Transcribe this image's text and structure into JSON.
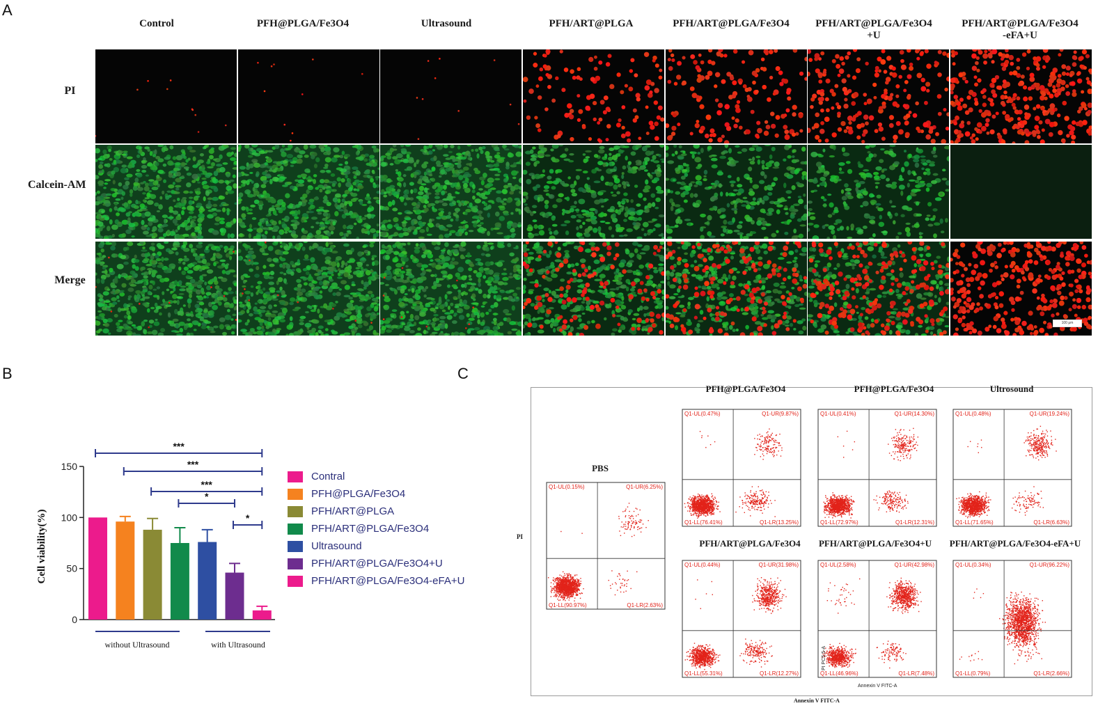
{
  "panels": {
    "a": "A",
    "b": "B",
    "c": "C"
  },
  "microscopy": {
    "columns": [
      "Control",
      "PFH@PLGA/Fe3O4",
      "Ultrasound",
      "PFH/ART@PLGA",
      "PFH/ART@PLGA/Fe3O4",
      "PFH/ART@PLGA/Fe3O4\n+U",
      "PFH/ART@PLGA/Fe3O4\n-eFA+U"
    ],
    "rows": [
      "PI",
      "Calcein-AM",
      "Merge"
    ],
    "scale_bar": "100 μm",
    "red_density": [
      0.02,
      0.02,
      0.02,
      0.35,
      0.45,
      0.6,
      1.0
    ],
    "green_density": [
      1.0,
      1.0,
      1.0,
      0.7,
      0.6,
      0.5,
      0.0
    ]
  },
  "chart_data": {
    "type": "bar",
    "ylabel": "Cell viability(%)",
    "ylim": [
      0,
      150
    ],
    "yticks": [
      "0",
      "50",
      "100",
      "150"
    ],
    "categories": [
      "Contral",
      "PFH@PLGA/Fe3O4",
      "PFH/ART@PLGA",
      "PFH/ART@PLGA/Fe3O4",
      "Ultrasound",
      "PFH/ART@PLGA/Fe3O4+U",
      "PFH/ART@PLGA/Fe3O4-eFA+U"
    ],
    "values": [
      100,
      96,
      88,
      75,
      76,
      46,
      9
    ],
    "errors": [
      0,
      5,
      11,
      15,
      12,
      9,
      4
    ],
    "colors": [
      "#ec1b8c",
      "#f5821f",
      "#8a8a35",
      "#118a4b",
      "#2e4fa2",
      "#6d2d8f",
      "#ec1b8c"
    ],
    "groups": [
      "without Ultrasound",
      "with Ultrasound"
    ],
    "significance": [
      {
        "label": "***",
        "from": 0,
        "to": 6
      },
      {
        "label": "***",
        "from": 1,
        "to": 6
      },
      {
        "label": "***",
        "from": 2,
        "to": 6
      },
      {
        "label": "*",
        "from": 3,
        "to": 5
      },
      {
        "label": "*",
        "from": 5,
        "to": 6
      }
    ]
  },
  "flow": {
    "y_axis_label": "PI",
    "x_axis_label": "Annexin V FITC-A",
    "inner_y_label": "PI PC5.5-A",
    "inner_x_label": "Annexin V FITC-A",
    "plots": [
      {
        "title": "PBS",
        "ul": "Q1-UL(0.15%)",
        "ur": "Q1-UR(6.25%)",
        "ll": "Q1-LL(90.97%)",
        "lr": "Q1-LR(2.63%)",
        "dist": [
          0.91,
          0.0015,
          0.0625,
          0.026
        ]
      },
      {
        "title": "PFH@PLGA/Fe3O4",
        "ul": "Q1-UL(0.47%)",
        "ur": "Q1-UR(9.87%)",
        "ll": "Q1-LL(76.41%)",
        "lr": "Q1-LR(13.25%)",
        "dist": [
          0.764,
          0.0047,
          0.0987,
          0.1325
        ]
      },
      {
        "title": "PFH@PLGA/Fe3O4",
        "ul": "Q1-UL(0.41%)",
        "ur": "Q1-UR(14.30%)",
        "ll": "Q1-LL(72.97%)",
        "lr": "Q1-LR(12.31%)",
        "dist": [
          0.73,
          0.0041,
          0.143,
          0.123
        ]
      },
      {
        "title": "Ultrosound",
        "ul": "Q1-UL(0.48%)",
        "ur": "Q1-UR(19.24%)",
        "ll": "Q1-LL(71.65%)",
        "lr": "Q1-LR(6.63%)",
        "dist": [
          0.7165,
          0.0048,
          0.1924,
          0.0663
        ]
      },
      {
        "title": "PFH/ART@PLGA/Fe3O4",
        "ul": "Q1-UL(0.44%)",
        "ur": "Q1-UR(31.98%)",
        "ll": "Q1-LL(55.31%)",
        "lr": "Q1-LR(12.27%)",
        "dist": [
          0.5531,
          0.0044,
          0.3198,
          0.1227
        ]
      },
      {
        "title": "PFH/ART@PLGA/Fe3O4+U",
        "ul": "Q1-UL(2.58%)",
        "ur": "Q1-UR(42.98%)",
        "ll": "Q1-LL(46.96%)",
        "lr": "Q1-LR(7.48%)",
        "dist": [
          0.4696,
          0.0258,
          0.4298,
          0.0748
        ]
      },
      {
        "title": "PFH/ART@PLGA/Fe3O4-eFA+U",
        "ul": "Q1-UL(0.34%)",
        "ur": "Q1-UR(96.22%)",
        "ll": "Q1-LL(0.79%)",
        "lr": "Q1-LR(2.66%)",
        "dist": [
          0.0079,
          0.0034,
          0.9622,
          0.0266
        ]
      }
    ]
  }
}
